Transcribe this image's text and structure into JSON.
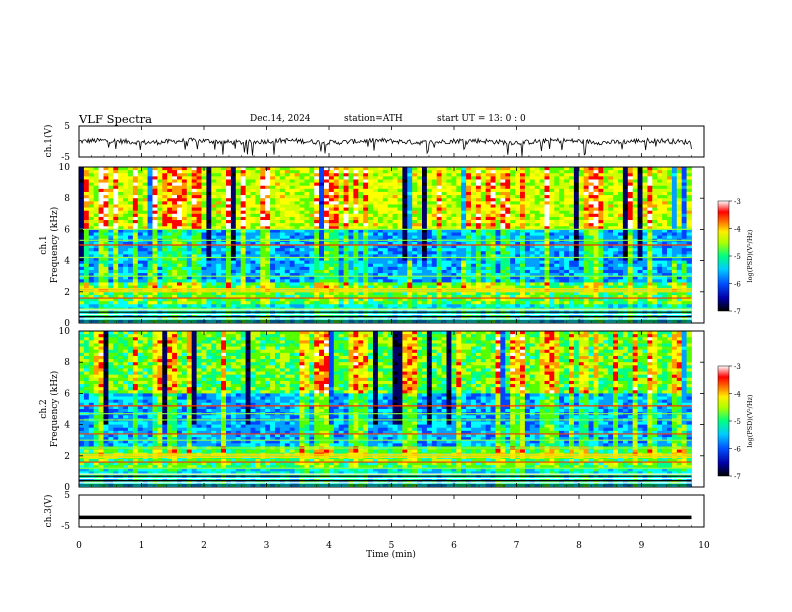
{
  "header": {
    "title": "VLF  Spectra",
    "date": "Dec.14, 2024",
    "station": "station=ATH",
    "start": "start  UT  =    13: 0  : 0"
  },
  "chart_data": {
    "type": "heatmap",
    "title": "VLF  Spectra",
    "x": {
      "label": "Time  (min)",
      "range": [
        0,
        10
      ],
      "ticks": [
        "0",
        "1",
        "2",
        "3",
        "4",
        "5",
        "6",
        "7",
        "8",
        "9",
        "10"
      ],
      "data_end": 9.8
    },
    "panels": [
      {
        "id": "ch1_waveform",
        "type": "line",
        "ylabel": "ch.1(V)",
        "ylim": [
          -5,
          5
        ],
        "ticks": [
          "5",
          "-5"
        ],
        "baseline": 0,
        "note_visible": "noisy waveform near 0 V with spikes to about -4 V"
      },
      {
        "id": "ch1_spectrogram",
        "type": "heatmap",
        "ylabel_line1": "ch.1",
        "ylabel_line2": "Frequency  (kHz)",
        "ylim": [
          0,
          10
        ],
        "ticks": [
          "0",
          "2",
          "4",
          "6",
          "8",
          "10"
        ],
        "horizontal_bands_khz": [
          0.4,
          0.7,
          0.9,
          1.6,
          2.0,
          2.1,
          2.2,
          3.0,
          4.2,
          5.0,
          5.3,
          6.0
        ],
        "colorbar": {
          "label": "log(PSD)(V²/Hz)",
          "ticks": [
            "-3",
            "-4",
            "-5",
            "-6",
            "-7"
          ],
          "range": [
            -7,
            -3
          ]
        }
      },
      {
        "id": "ch2_spectrogram",
        "type": "heatmap",
        "ylabel_line1": "ch.2",
        "ylabel_line2": "Frequency  (kHz)",
        "ylim": [
          0,
          10
        ],
        "ticks": [
          "0",
          "2",
          "4",
          "6",
          "8",
          "10"
        ],
        "horizontal_bands_khz": [
          0.4,
          0.8,
          1.2,
          1.6,
          1.9,
          2.0,
          2.1,
          2.5,
          3.0,
          3.4,
          4.3,
          4.7,
          5.2
        ],
        "colorbar": {
          "label": "log(PSD)(V²/Hz)",
          "ticks": [
            "-3",
            "-4",
            "-5",
            "-6",
            "-7"
          ],
          "range": [
            -7,
            -3
          ]
        }
      },
      {
        "id": "ch3_waveform",
        "type": "line",
        "ylabel": "ch.3(V)",
        "ylim": [
          -5,
          5
        ],
        "ticks": [
          "5",
          "-5"
        ],
        "baseline": -2,
        "note_visible": "flat thick trace at about -2 V"
      }
    ],
    "colormap": [
      "#000000",
      "#000066",
      "#0000cc",
      "#0044ff",
      "#00a0ff",
      "#00ffff",
      "#00ff88",
      "#55ff00",
      "#ccff00",
      "#ffff00",
      "#ff9900",
      "#ff0000",
      "#ffffff"
    ]
  }
}
